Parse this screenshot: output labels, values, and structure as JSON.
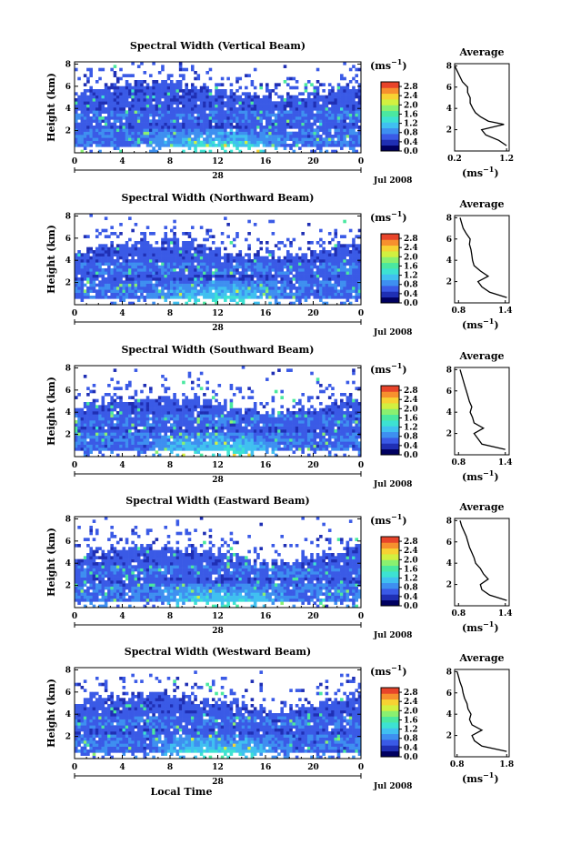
{
  "figure": {
    "xlabel": "Local Time",
    "date_label": "Jul 2008",
    "date_day": "28",
    "ylabel": "Height (km)",
    "colorbar_unit_base": "(ms",
    "colorbar_unit_exp": "−1",
    "avg_title": "Average",
    "avg_unit_base": "(ms",
    "avg_unit_exp": "−1",
    "colormap": [
      "#000060",
      "#1f2fb4",
      "#3a5ae6",
      "#3e8ff0",
      "#40c0f0",
      "#3de2d2",
      "#4be8a0",
      "#8af070",
      "#d2f040",
      "#f7d233",
      "#f7902e",
      "#e8442a"
    ]
  },
  "chart_data": [
    {
      "type": "heatmap",
      "title": "Spectral Width (Vertical Beam)",
      "xlabel": "",
      "ylabel": "Height (km)",
      "x_ticks": [
        "0",
        "4",
        "8",
        "12",
        "16",
        "20",
        "0"
      ],
      "y_ticks": [
        "2",
        "4",
        "6",
        "8"
      ],
      "colorbar_ticks": [
        "2.8",
        "2.4",
        "2.0",
        "1.6",
        "1.2",
        "0.8",
        "0.4",
        "0.0"
      ],
      "colorbar_range": [
        0.0,
        3.0
      ],
      "echo_top_km": 5.4,
      "average_profile": {
        "title": "Average",
        "x_ticks": [
          "0.2",
          "1.2"
        ],
        "y_ticks": [
          "2",
          "4",
          "6",
          "8"
        ],
        "xlim": [
          0.2,
          1.25
        ],
        "height_km": [
          0.5,
          1.0,
          1.5,
          2.0,
          2.5,
          2.8,
          3.2,
          3.6,
          4.0,
          4.5,
          5.0,
          5.5,
          6.0,
          6.5,
          7.0,
          7.5,
          8.0
        ],
        "width_ms": [
          1.2,
          1.05,
          0.8,
          0.72,
          1.15,
          0.85,
          0.7,
          0.6,
          0.55,
          0.5,
          0.5,
          0.45,
          0.45,
          0.35,
          0.3,
          0.25,
          0.2
        ]
      }
    },
    {
      "type": "heatmap",
      "title": "Spectral Width (Northward Beam)",
      "xlabel": "",
      "ylabel": "Height (km)",
      "x_ticks": [
        "0",
        "4",
        "8",
        "12",
        "16",
        "20",
        "0"
      ],
      "y_ticks": [
        "2",
        "4",
        "6",
        "8"
      ],
      "colorbar_ticks": [
        "2.8",
        "2.4",
        "2.0",
        "1.6",
        "1.2",
        "0.8",
        "0.4",
        "0.0"
      ],
      "colorbar_range": [
        0.0,
        3.0
      ],
      "echo_top_km": 4.8,
      "average_profile": {
        "title": "Average",
        "x_ticks": [
          "0.8",
          "1.4"
        ],
        "y_ticks": [
          "2",
          "4",
          "6",
          "8"
        ],
        "xlim": [
          0.75,
          1.45
        ],
        "height_km": [
          0.5,
          1.0,
          1.5,
          2.0,
          2.5,
          3.0,
          3.5,
          4.0,
          4.5,
          5.0,
          5.5,
          6.0,
          6.5,
          7.0,
          7.5,
          8.0
        ],
        "width_ms": [
          1.42,
          1.2,
          1.1,
          1.05,
          1.18,
          1.08,
          1.0,
          0.98,
          0.97,
          0.96,
          0.94,
          0.95,
          0.9,
          0.86,
          0.84,
          0.82
        ]
      }
    },
    {
      "type": "heatmap",
      "title": "Spectral Width (Southward Beam)",
      "xlabel": "",
      "ylabel": "Height (km)",
      "x_ticks": [
        "0",
        "4",
        "8",
        "12",
        "16",
        "20",
        "0"
      ],
      "y_ticks": [
        "2",
        "4",
        "6",
        "8"
      ],
      "colorbar_ticks": [
        "2.8",
        "2.4",
        "2.0",
        "1.6",
        "1.2",
        "0.8",
        "0.4",
        "0.0"
      ],
      "colorbar_range": [
        0.0,
        3.0
      ],
      "echo_top_km": 4.5,
      "average_profile": {
        "title": "Average",
        "x_ticks": [
          "0.8",
          "1.4"
        ],
        "y_ticks": [
          "2",
          "4",
          "6",
          "8"
        ],
        "xlim": [
          0.75,
          1.45
        ],
        "height_km": [
          0.5,
          1.0,
          1.5,
          2.0,
          2.5,
          3.0,
          3.5,
          4.0,
          4.5,
          5.0,
          5.5,
          6.0,
          6.5,
          7.0,
          7.5,
          8.0
        ],
        "width_ms": [
          1.4,
          1.1,
          1.05,
          1.0,
          1.12,
          1.0,
          0.98,
          0.95,
          0.97,
          0.94,
          0.92,
          0.9,
          0.88,
          0.86,
          0.84,
          0.82
        ]
      }
    },
    {
      "type": "heatmap",
      "title": "Spectral Width (Eastward Beam)",
      "xlabel": "",
      "ylabel": "Height (km)",
      "x_ticks": [
        "0",
        "4",
        "8",
        "12",
        "16",
        "20",
        "0"
      ],
      "y_ticks": [
        "2",
        "4",
        "6",
        "8"
      ],
      "colorbar_ticks": [
        "2.8",
        "2.4",
        "2.0",
        "1.6",
        "1.2",
        "0.8",
        "0.4",
        "0.0"
      ],
      "colorbar_range": [
        0.0,
        3.0
      ],
      "echo_top_km": 4.6,
      "average_profile": {
        "title": "Average",
        "x_ticks": [
          "0.8",
          "1.4"
        ],
        "y_ticks": [
          "2",
          "4",
          "6",
          "8"
        ],
        "xlim": [
          0.75,
          1.45
        ],
        "height_km": [
          0.5,
          1.0,
          1.5,
          2.0,
          2.5,
          3.0,
          3.5,
          4.0,
          4.5,
          5.0,
          5.5,
          6.0,
          6.5,
          7.0,
          7.5,
          8.0
        ],
        "width_ms": [
          1.42,
          1.2,
          1.1,
          1.08,
          1.18,
          1.12,
          1.08,
          1.02,
          1.0,
          0.97,
          0.94,
          0.92,
          0.9,
          0.87,
          0.84,
          0.82
        ]
      }
    },
    {
      "type": "heatmap",
      "title": "Spectral Width (Westward Beam)",
      "xlabel": "Local Time",
      "ylabel": "Height (km)",
      "x_ticks": [
        "0",
        "4",
        "8",
        "12",
        "16",
        "20",
        "0"
      ],
      "y_ticks": [
        "2",
        "4",
        "6",
        "8"
      ],
      "colorbar_ticks": [
        "2.8",
        "2.4",
        "2.0",
        "1.6",
        "1.2",
        "0.8",
        "0.4",
        "0.0"
      ],
      "colorbar_range": [
        0.0,
        3.0
      ],
      "echo_top_km": 4.9,
      "average_profile": {
        "title": "Average",
        "x_ticks": [
          "0.8",
          "1.8"
        ],
        "y_ticks": [
          "2",
          "4",
          "6",
          "8"
        ],
        "xlim": [
          0.75,
          1.85
        ],
        "height_km": [
          0.5,
          1.0,
          1.5,
          2.0,
          2.5,
          3.0,
          3.5,
          4.0,
          4.5,
          5.0,
          5.5,
          6.0,
          6.5,
          7.0,
          7.5,
          8.0
        ],
        "width_ms": [
          1.8,
          1.3,
          1.15,
          1.1,
          1.3,
          1.1,
          1.05,
          1.08,
          1.02,
          1.0,
          0.95,
          0.92,
          0.9,
          0.86,
          0.83,
          0.8
        ]
      }
    }
  ]
}
